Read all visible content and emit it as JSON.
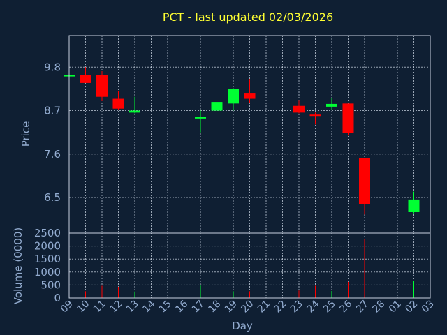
{
  "chart_data": [
    {
      "type": "candlestick",
      "title": "PCT - last updated 02/03/2026",
      "ylabel": "Price",
      "yticks": [
        6.5,
        7.6,
        8.7,
        9.8
      ],
      "ylim": [
        5.6,
        10.6
      ],
      "grid": true,
      "x": [
        "09",
        "10",
        "11",
        "12",
        "13",
        "14",
        "15",
        "16",
        "17",
        "18",
        "19",
        "20",
        "21",
        "22",
        "23",
        "24",
        "25",
        "26",
        "27",
        "28",
        "01",
        "02",
        "03"
      ],
      "candles": [
        {
          "day": "09",
          "open": 9.6,
          "high": 9.6,
          "low": 9.6,
          "close": 9.6
        },
        {
          "day": "10",
          "open": 9.6,
          "high": 9.8,
          "low": 9.4,
          "close": 9.4
        },
        {
          "day": "11",
          "open": 9.6,
          "high": 9.7,
          "low": 8.95,
          "close": 9.05
        },
        {
          "day": "12",
          "open": 9.0,
          "high": 9.2,
          "low": 8.72,
          "close": 8.75
        },
        {
          "day": "13",
          "open": 8.65,
          "high": 9.05,
          "low": 8.63,
          "close": 8.7
        },
        {
          "day": "17",
          "open": 8.5,
          "high": 8.73,
          "low": 8.15,
          "close": 8.55
        },
        {
          "day": "18",
          "open": 8.7,
          "high": 9.22,
          "low": 8.7,
          "close": 8.92
        },
        {
          "day": "19",
          "open": 8.88,
          "high": 9.27,
          "low": 8.7,
          "close": 9.25
        },
        {
          "day": "20",
          "open": 9.15,
          "high": 9.5,
          "low": 8.9,
          "close": 9.0
        },
        {
          "day": "23",
          "open": 8.82,
          "high": 8.97,
          "low": 8.63,
          "close": 8.65
        },
        {
          "day": "24",
          "open": 8.6,
          "high": 8.65,
          "low": 8.35,
          "close": 8.57
        },
        {
          "day": "25",
          "open": 8.8,
          "high": 9.02,
          "low": 8.73,
          "close": 8.87
        },
        {
          "day": "26",
          "open": 8.88,
          "high": 8.88,
          "low": 8.07,
          "close": 8.13
        },
        {
          "day": "27",
          "open": 7.5,
          "high": 7.5,
          "low": 6.07,
          "close": 6.33
        },
        {
          "day": "02",
          "open": 6.13,
          "high": 6.65,
          "low": 6.1,
          "close": 6.45
        }
      ]
    },
    {
      "type": "bar",
      "ylabel": "Volume (0000)",
      "xlabel": "Day",
      "yticks": [
        0,
        500,
        1000,
        1500,
        2000,
        2500
      ],
      "ylim": [
        0,
        2500
      ],
      "grid": true,
      "bars": [
        {
          "day": "10",
          "value": 260,
          "up": false
        },
        {
          "day": "11",
          "value": 470,
          "up": false
        },
        {
          "day": "12",
          "value": 430,
          "up": false
        },
        {
          "day": "13",
          "value": 250,
          "up": true
        },
        {
          "day": "17",
          "value": 480,
          "up": true
        },
        {
          "day": "18",
          "value": 460,
          "up": true
        },
        {
          "day": "19",
          "value": 260,
          "up": true
        },
        {
          "day": "20",
          "value": 260,
          "up": false
        },
        {
          "day": "23",
          "value": 290,
          "up": false
        },
        {
          "day": "24",
          "value": 470,
          "up": false
        },
        {
          "day": "25",
          "value": 270,
          "up": true
        },
        {
          "day": "26",
          "value": 620,
          "up": false
        },
        {
          "day": "27",
          "value": 2270,
          "up": false
        },
        {
          "day": "02",
          "value": 650,
          "up": true
        }
      ]
    }
  ],
  "colors": {
    "background": "#0f1f33",
    "up": "#00ff33",
    "down": "#ff0000",
    "title": "#ffff33",
    "text": "#93acd0",
    "grid": "#c8d2e0"
  }
}
